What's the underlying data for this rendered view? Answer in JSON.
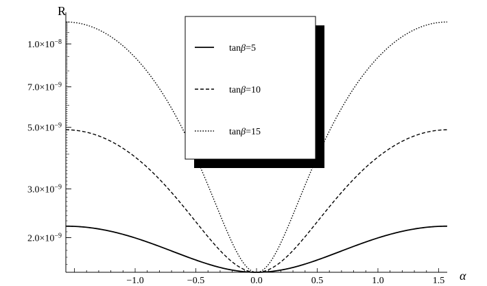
{
  "chart_data": {
    "type": "line",
    "title": "",
    "xlabel": "α",
    "ylabel": "R",
    "y_scale": "log",
    "xlim": [
      -1.5708,
      1.5708
    ],
    "ylim": [
      1.5e-09,
      1.3e-08
    ],
    "x_ticks": [
      {
        "value": -1.0,
        "label": "−1.0"
      },
      {
        "value": -0.5,
        "label": "−0.5"
      },
      {
        "value": 0.0,
        "label": "0.0"
      },
      {
        "value": 0.5,
        "label": "0.5"
      },
      {
        "value": 1.0,
        "label": "1.0"
      },
      {
        "value": 1.5,
        "label": "1.5"
      }
    ],
    "y_ticks": [
      {
        "value": 2e-09,
        "mantissa": "2.0",
        "base": "×10",
        "exponent": "−9"
      },
      {
        "value": 3e-09,
        "mantissa": "3.0",
        "base": "×10",
        "exponent": "−9"
      },
      {
        "value": 5e-09,
        "mantissa": "5.0",
        "base": "×10",
        "exponent": "−9"
      },
      {
        "value": 7e-09,
        "mantissa": "7.0",
        "base": "×10",
        "exponent": "−9"
      },
      {
        "value": 1e-08,
        "mantissa": "1.0",
        "base": "×10",
        "exponent": "−8"
      }
    ],
    "series_model": "R(α) = R0 + (Rmax − R0)·sin²(α)",
    "series": [
      {
        "name": "tanβ=5",
        "label_prefix": "tan",
        "label_greek": "β",
        "label_suffix": "=5",
        "dash": "solid",
        "r_min": 1.5e-09,
        "r_max": 2.2e-09
      },
      {
        "name": "tanβ=10",
        "label_prefix": "tan",
        "label_greek": "β",
        "label_suffix": "=10",
        "dash": "dashed",
        "r_min": 1.5e-09,
        "r_max": 4.9e-09
      },
      {
        "name": "tanβ=15",
        "label_prefix": "tan",
        "label_greek": "β",
        "label_suffix": "=15",
        "dash": "dotted",
        "r_min": 1.5e-09,
        "r_max": 1.2e-08
      }
    ],
    "legend": {
      "position": "top-center",
      "shadow": true
    },
    "grid": false,
    "colors": {
      "line": "#000000",
      "axis": "#000000",
      "background": "#ffffff",
      "legend_shadow": "#000000"
    }
  }
}
